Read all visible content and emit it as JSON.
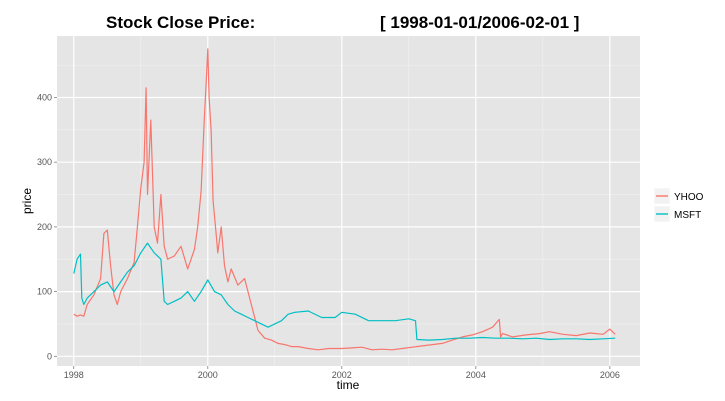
{
  "chart_data": {
    "type": "line",
    "title_left": "Stock Close Price:",
    "title_right": "[ 1998-01-01/2006-02-01 ]",
    "xlabel": "time",
    "ylabel": "price",
    "xlim": [
      1997.75,
      2006.45
    ],
    "ylim": [
      -15,
      495
    ],
    "x_ticks": [
      {
        "value": 1998,
        "label": "1998"
      },
      {
        "value": 2000,
        "label": "2000"
      },
      {
        "value": 2002,
        "label": "2002"
      },
      {
        "value": 2004,
        "label": "2004"
      },
      {
        "value": 2006,
        "label": "2006"
      }
    ],
    "y_ticks": [
      {
        "value": 0,
        "label": "0"
      },
      {
        "value": 100,
        "label": "100"
      },
      {
        "value": 200,
        "label": "200"
      },
      {
        "value": 300,
        "label": "300"
      },
      {
        "value": 400,
        "label": "400"
      }
    ],
    "grid": true,
    "legend_position": "right",
    "series": [
      {
        "name": "YHOO",
        "color": "#F8766D",
        "x": [
          1998.0,
          1998.05,
          1998.1,
          1998.15,
          1998.2,
          1998.3,
          1998.4,
          1998.45,
          1998.5,
          1998.55,
          1998.6,
          1998.65,
          1998.7,
          1998.8,
          1998.9,
          1998.95,
          1999.0,
          1999.05,
          1999.08,
          1999.1,
          1999.15,
          1999.2,
          1999.25,
          1999.3,
          1999.35,
          1999.4,
          1999.5,
          1999.6,
          1999.7,
          1999.8,
          1999.85,
          1999.9,
          1999.95,
          1999.98,
          2000.0,
          2000.02,
          2000.05,
          2000.08,
          2000.12,
          2000.15,
          2000.2,
          2000.25,
          2000.3,
          2000.35,
          2000.45,
          2000.55,
          2000.65,
          2000.75,
          2000.85,
          2000.95,
          2001.05,
          2001.15,
          2001.25,
          2001.35,
          2001.5,
          2001.65,
          2001.8,
          2002.0,
          2002.15,
          2002.3,
          2002.45,
          2002.6,
          2002.75,
          2002.9,
          2003.05,
          2003.2,
          2003.35,
          2003.5,
          2003.65,
          2003.8,
          2003.95,
          2004.1,
          2004.25,
          2004.35,
          2004.37,
          2004.4,
          2004.55,
          2004.75,
          2004.95,
          2005.1,
          2005.3,
          2005.5,
          2005.7,
          2005.9,
          2006.0,
          2006.08
        ],
        "values": [
          65,
          62,
          64,
          62,
          80,
          95,
          120,
          190,
          195,
          140,
          95,
          80,
          100,
          120,
          145,
          200,
          260,
          300,
          415,
          250,
          365,
          200,
          175,
          250,
          170,
          150,
          155,
          170,
          135,
          165,
          200,
          255,
          370,
          430,
          475,
          400,
          350,
          240,
          195,
          160,
          200,
          140,
          115,
          135,
          110,
          120,
          80,
          40,
          28,
          25,
          20,
          18,
          15,
          15,
          12,
          10,
          12,
          12,
          13,
          14,
          10,
          11,
          10,
          12,
          14,
          16,
          18,
          20,
          25,
          30,
          33,
          38,
          45,
          57,
          30,
          35,
          30,
          33,
          35,
          38,
          34,
          32,
          36,
          34,
          42,
          34
        ]
      },
      {
        "name": "MSFT",
        "color": "#00BFC4",
        "x": [
          1998.0,
          1998.05,
          1998.1,
          1998.12,
          1998.15,
          1998.2,
          1998.3,
          1998.4,
          1998.5,
          1998.6,
          1998.7,
          1998.8,
          1998.9,
          1999.0,
          1999.1,
          1999.2,
          1999.3,
          1999.35,
          1999.4,
          1999.5,
          1999.6,
          1999.7,
          1999.8,
          1999.9,
          2000.0,
          2000.1,
          2000.2,
          2000.3,
          2000.4,
          2000.5,
          2000.6,
          2000.7,
          2000.8,
          2000.9,
          2001.0,
          2001.1,
          2001.2,
          2001.3,
          2001.5,
          2001.7,
          2001.9,
          2002.0,
          2002.2,
          2002.4,
          2002.6,
          2002.8,
          2003.0,
          2003.1,
          2003.12,
          2003.3,
          2003.5,
          2003.7,
          2003.9,
          2004.1,
          2004.3,
          2004.5,
          2004.7,
          2004.9,
          2005.1,
          2005.3,
          2005.5,
          2005.7,
          2005.9,
          2006.08
        ],
        "values": [
          128,
          150,
          158,
          90,
          80,
          90,
          100,
          110,
          115,
          100,
          115,
          130,
          140,
          160,
          175,
          160,
          150,
          85,
          80,
          85,
          90,
          100,
          85,
          100,
          118,
          100,
          95,
          80,
          70,
          65,
          60,
          55,
          50,
          45,
          50,
          55,
          65,
          68,
          70,
          60,
          60,
          68,
          65,
          55,
          55,
          55,
          58,
          55,
          26,
          25,
          26,
          28,
          28,
          29,
          28,
          28,
          27,
          28,
          26,
          27,
          27,
          26,
          27,
          28
        ]
      }
    ]
  }
}
